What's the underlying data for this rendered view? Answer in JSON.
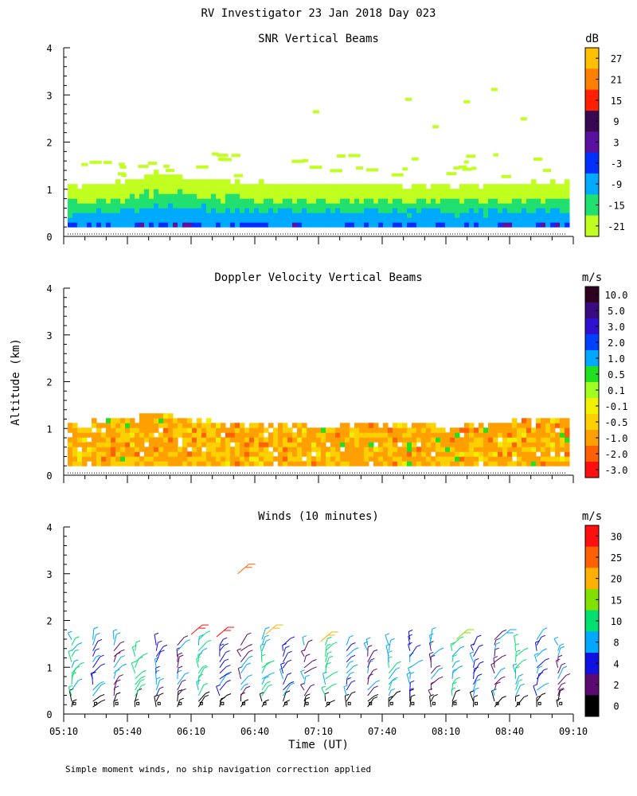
{
  "figure_title": "RV Investigator  23 Jan 2018 Day 023",
  "ylabel": "Altitude (km)",
  "xlabel": "Time (UT)",
  "footnote": "Simple moment winds, no ship navigation correction applied",
  "chart_data": [
    {
      "type": "heatmap",
      "title": "SNR Vertical Beams",
      "ylabel": "Altitude (km)",
      "ylim": [
        0,
        4
      ],
      "yticks": [
        "0",
        "1",
        "2",
        "3",
        "4"
      ],
      "x_range": [
        "05:10",
        "09:10"
      ],
      "colorbar": {
        "unit": "dB",
        "ticks": [
          "27",
          "21",
          "15",
          "9",
          "3",
          "-3",
          "-9",
          "-15",
          "-21"
        ],
        "colors": [
          "#ffc000",
          "#ff8000",
          "#ff2000",
          "#380850",
          "#5a10a0",
          "#0030ff",
          "#00aaff",
          "#20e070",
          "#c0ff20"
        ]
      },
      "boundary_layer_top_km": [
        1.0,
        1.05,
        1.1,
        1.3,
        1.2,
        1.15,
        1.1,
        1.05,
        1.05,
        1.05,
        1.05,
        1.05,
        1.0,
        1.0,
        1.05,
        1.05,
        1.1,
        1.15
      ]
    },
    {
      "type": "heatmap",
      "title": "Doppler Velocity Vertical Beams",
      "ylabel": "Altitude (km)",
      "ylim": [
        0,
        4
      ],
      "yticks": [
        "0",
        "1",
        "2",
        "3",
        "4"
      ],
      "x_range": [
        "05:10",
        "09:10"
      ],
      "colorbar": {
        "unit": "m/s",
        "ticks": [
          "10.0",
          "5.0",
          "3.0",
          "2.0",
          "1.0",
          "0.5",
          "0.1",
          "-0.1",
          "-0.5",
          "-1.0",
          "-2.0",
          "-3.0"
        ],
        "colors": [
          "#300020",
          "#3a0a80",
          "#3010d0",
          "#0040ff",
          "#00a8ff",
          "#20e020",
          "#a0ff20",
          "#f0f000",
          "#ffd000",
          "#ffa000",
          "#ff6000",
          "#ff1010"
        ]
      },
      "boundary_layer_top_km": [
        1.05,
        1.1,
        1.15,
        1.3,
        1.15,
        1.1,
        1.05,
        1.0,
        1.0,
        1.0,
        1.05,
        1.05,
        1.05,
        1.0,
        1.05,
        1.1,
        1.15,
        1.2
      ]
    },
    {
      "type": "scatter",
      "title": "Winds (10 minutes)",
      "ylabel": "Altitude (km)",
      "xlabel": "Time (UT)",
      "ylim": [
        0,
        4
      ],
      "yticks": [
        "0",
        "1",
        "2",
        "3",
        "4"
      ],
      "xticks": [
        "05:10",
        "05:40",
        "06:10",
        "06:40",
        "07:10",
        "07:40",
        "08:10",
        "08:40",
        "09:10"
      ],
      "colorbar": {
        "unit": "m/s",
        "ticks": [
          "30",
          "25",
          "20",
          "15",
          "10",
          "8",
          "4",
          "2",
          "0"
        ],
        "colors": [
          "#ff1010",
          "#ff6000",
          "#ffb000",
          "#80e000",
          "#00e070",
          "#00a8ff",
          "#1010e0",
          "#5a0a70",
          "#000000"
        ]
      },
      "profile_times": [
        "05:10",
        "05:20",
        "05:30",
        "05:40",
        "05:50",
        "06:00",
        "06:10",
        "06:20",
        "06:30",
        "06:40",
        "06:50",
        "07:00",
        "07:10",
        "07:20",
        "07:30",
        "07:40",
        "07:50",
        "08:00",
        "08:10",
        "08:20",
        "08:30",
        "08:40",
        "08:50",
        "09:00"
      ]
    }
  ]
}
